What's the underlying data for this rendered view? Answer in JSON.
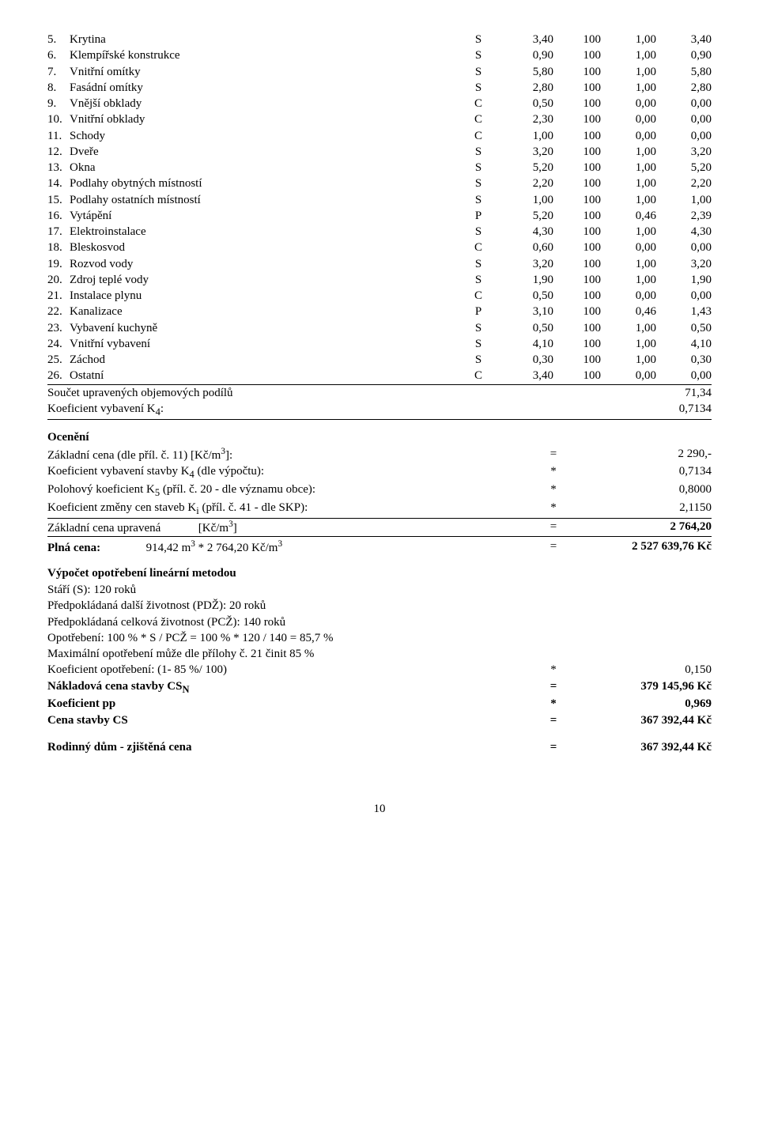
{
  "items": [
    {
      "num": "5.",
      "name": "Krytina",
      "type": "S",
      "v1": "3,40",
      "v2": "100",
      "v3": "1,00",
      "v4": "3,40"
    },
    {
      "num": "6.",
      "name": "Klempířské konstrukce",
      "type": "S",
      "v1": "0,90",
      "v2": "100",
      "v3": "1,00",
      "v4": "0,90"
    },
    {
      "num": "7.",
      "name": "Vnitřní omítky",
      "type": "S",
      "v1": "5,80",
      "v2": "100",
      "v3": "1,00",
      "v4": "5,80"
    },
    {
      "num": "8.",
      "name": "Fasádní omítky",
      "type": "S",
      "v1": "2,80",
      "v2": "100",
      "v3": "1,00",
      "v4": "2,80"
    },
    {
      "num": "9.",
      "name": "Vnější obklady",
      "type": "C",
      "v1": "0,50",
      "v2": "100",
      "v3": "0,00",
      "v4": "0,00"
    },
    {
      "num": "10.",
      "name": "Vnitřní obklady",
      "type": "C",
      "v1": "2,30",
      "v2": "100",
      "v3": "0,00",
      "v4": "0,00"
    },
    {
      "num": "11.",
      "name": "Schody",
      "type": "C",
      "v1": "1,00",
      "v2": "100",
      "v3": "0,00",
      "v4": "0,00"
    },
    {
      "num": "12.",
      "name": "Dveře",
      "type": "S",
      "v1": "3,20",
      "v2": "100",
      "v3": "1,00",
      "v4": "3,20"
    },
    {
      "num": "13.",
      "name": "Okna",
      "type": "S",
      "v1": "5,20",
      "v2": "100",
      "v3": "1,00",
      "v4": "5,20"
    },
    {
      "num": "14.",
      "name": "Podlahy obytných místností",
      "type": "S",
      "v1": "2,20",
      "v2": "100",
      "v3": "1,00",
      "v4": "2,20"
    },
    {
      "num": "15.",
      "name": "Podlahy ostatních místností",
      "type": "S",
      "v1": "1,00",
      "v2": "100",
      "v3": "1,00",
      "v4": "1,00"
    },
    {
      "num": "16.",
      "name": "Vytápění",
      "type": "P",
      "v1": "5,20",
      "v2": "100",
      "v3": "0,46",
      "v4": "2,39"
    },
    {
      "num": "17.",
      "name": "Elektroinstalace",
      "type": "S",
      "v1": "4,30",
      "v2": "100",
      "v3": "1,00",
      "v4": "4,30"
    },
    {
      "num": "18.",
      "name": "Bleskosvod",
      "type": "C",
      "v1": "0,60",
      "v2": "100",
      "v3": "0,00",
      "v4": "0,00"
    },
    {
      "num": "19.",
      "name": "Rozvod vody",
      "type": "S",
      "v1": "3,20",
      "v2": "100",
      "v3": "1,00",
      "v4": "3,20"
    },
    {
      "num": "20.",
      "name": "Zdroj teplé vody",
      "type": "S",
      "v1": "1,90",
      "v2": "100",
      "v3": "1,00",
      "v4": "1,90"
    },
    {
      "num": "21.",
      "name": "Instalace plynu",
      "type": "C",
      "v1": "0,50",
      "v2": "100",
      "v3": "0,00",
      "v4": "0,00"
    },
    {
      "num": "22.",
      "name": "Kanalizace",
      "type": "P",
      "v1": "3,10",
      "v2": "100",
      "v3": "0,46",
      "v4": "1,43"
    },
    {
      "num": "23.",
      "name": "Vybavení kuchyně",
      "type": "S",
      "v1": "0,50",
      "v2": "100",
      "v3": "1,00",
      "v4": "0,50"
    },
    {
      "num": "24.",
      "name": "Vnitřní vybavení",
      "type": "S",
      "v1": "4,10",
      "v2": "100",
      "v3": "1,00",
      "v4": "4,10"
    },
    {
      "num": "25.",
      "name": "Záchod",
      "type": "S",
      "v1": "0,30",
      "v2": "100",
      "v3": "1,00",
      "v4": "0,30"
    },
    {
      "num": "26.",
      "name": "Ostatní",
      "type": "C",
      "v1": "3,40",
      "v2": "100",
      "v3": "0,00",
      "v4": "0,00"
    }
  ],
  "sum1": {
    "label": "Součet upravených objemových podílů",
    "val": "71,34"
  },
  "sum2": {
    "label": "Koeficient vybavení K",
    "sub": "4",
    "suffix": ":",
    "val": "0,7134"
  },
  "ocen_head": "Ocenění",
  "ocen": [
    {
      "label": "Základní cena (dle příl. č. 11) [Kč/m",
      "sup": "3",
      "suffix": "]:",
      "eq": "=",
      "val": "2 290,-"
    },
    {
      "label": "Koeficient vybavení stavby K",
      "sub": "4",
      "suffix": " (dle výpočtu):",
      "eq": "*",
      "val": "0,7134"
    },
    {
      "label": "Polohový koeficient K",
      "sub": "5",
      "suffix": " (příl. č. 20 - dle významu obce):",
      "eq": "*",
      "val": "0,8000"
    },
    {
      "label": "Koeficient změny cen staveb K",
      "sub": "i",
      "suffix": " (příl. č. 41 - dle SKP):",
      "eq": "*",
      "val": "2,1150"
    }
  ],
  "ocen_zcu": {
    "label": "Základní cena upravená",
    "unit_pre": "[Kč/m",
    "sup": "3",
    "unit_post": "]",
    "eq": "=",
    "val": "2 764,20"
  },
  "plna": {
    "label": "Plná cena:",
    "formula": "914,42 m",
    "sup1": "3",
    "mid": " * 2 764,20 Kč/m",
    "sup2": "3",
    "eq": "=",
    "val": "2 527 639,76 Kč"
  },
  "opot_head": "Výpočet opotřebení lineární metodou",
  "opot_lines": [
    "Stáří (S): 120 roků",
    "Předpokládaná další životnost (PDŽ): 20 roků",
    "Předpokládaná celková životnost (PCŽ): 140 roků",
    "Opotřebení: 100 % * S / PCŽ = 100 % * 120 / 140 = 85,7 %",
    "Maximální opotřebení může dle přílohy č. 21 činit 85 %"
  ],
  "opot_calc": [
    {
      "label": "Koeficient opotřebení: (1- 85 %/ 100)",
      "eq": "*",
      "val": "0,150",
      "bold": false
    },
    {
      "label": "Nákladová cena stavby CS",
      "sub": "N",
      "eq": "=",
      "val": "379 145,96 Kč",
      "bold": true
    },
    {
      "label": "Koeficient pp",
      "eq": "*",
      "val": "0,969",
      "bold": true
    },
    {
      "label": "Cena stavby CS",
      "eq": "=",
      "val": "367 392,44 Kč",
      "bold": true
    }
  ],
  "final": {
    "label": "Rodinný dům - zjištěná cena",
    "eq": "=",
    "val": "367 392,44 Kč"
  },
  "page": "10"
}
